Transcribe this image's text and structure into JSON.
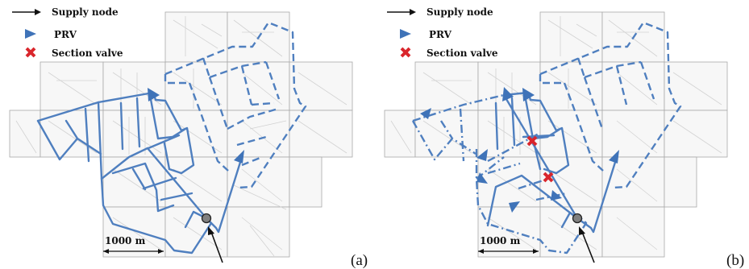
{
  "legend": {
    "supply_node": "Supply node",
    "prv": "PRV",
    "section_valve": "Section valve"
  },
  "scale_bar": "1000 m",
  "panels": [
    {
      "label": "(a)"
    },
    {
      "label": "(b)"
    }
  ],
  "colors": {
    "pipe": "#4f7fbf",
    "prv": "#3f73b8",
    "section_valve": "#d9262c",
    "supply_node": "#808080"
  },
  "icons": {
    "supply_node": "arrow-right-icon",
    "prv": "triangle-marker-icon",
    "section_valve": "red-x-icon"
  }
}
